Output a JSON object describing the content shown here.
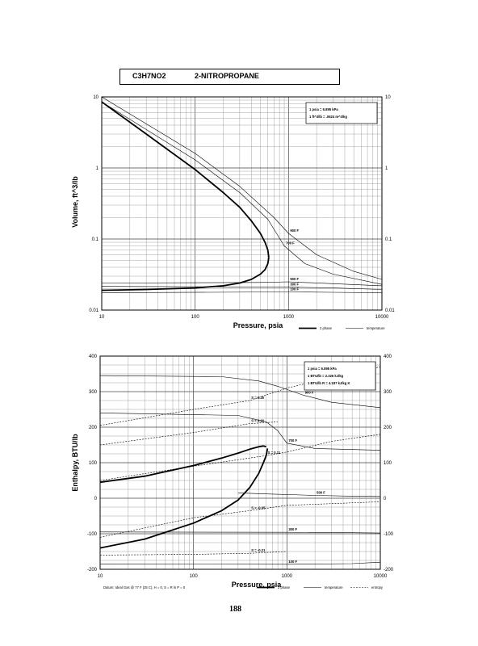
{
  "header": {
    "formula": "C3H7NO2",
    "compound": "2-NITROPROPANE"
  },
  "page_number": "188",
  "chart_data": [
    {
      "type": "line",
      "xscale": "log",
      "yscale": "log",
      "xlabel": "Pressure,  psia",
      "ylabel": "Volume, ft^3/lb",
      "xlim": [
        10,
        10000
      ],
      "ylim": [
        0.01,
        10
      ],
      "x_ticks": [
        "10",
        "100",
        "1000",
        "10000"
      ],
      "y_ticks_left": [
        "10",
        "1",
        "0.1",
        "0.01"
      ],
      "y_ticks_right": [
        "10",
        "1",
        "0.1",
        "0.01"
      ],
      "conversions": [
        "1 psia = 6.895 kPa",
        "1 ft^3/lb = .0624 m^3/kg"
      ],
      "legend": [
        "2 phase",
        "temperature"
      ],
      "two_phase": {
        "name": "2 phase",
        "vapor": [
          [
            10,
            8.5
          ],
          [
            30,
            3.0
          ],
          [
            100,
            0.95
          ],
          [
            200,
            0.45
          ],
          [
            300,
            0.28
          ],
          [
            400,
            0.18
          ],
          [
            500,
            0.12
          ],
          [
            560,
            0.09
          ],
          [
            600,
            0.07
          ],
          [
            615,
            0.055
          ]
        ],
        "liquid": [
          [
            10,
            0.019
          ],
          [
            30,
            0.0195
          ],
          [
            100,
            0.0205
          ],
          [
            200,
            0.022
          ],
          [
            300,
            0.024
          ],
          [
            400,
            0.027
          ],
          [
            500,
            0.032
          ],
          [
            560,
            0.037
          ],
          [
            600,
            0.045
          ],
          [
            615,
            0.055
          ]
        ]
      },
      "isotherms": [
        {
          "label": "900 F",
          "points": [
            [
              10,
              10
            ],
            [
              100,
              1.6
            ],
            [
              300,
              0.55
            ],
            [
              700,
              0.2
            ],
            [
              1000,
              0.12
            ],
            [
              2000,
              0.06
            ],
            [
              5000,
              0.035
            ],
            [
              10000,
              0.027
            ]
          ]
        },
        {
          "label": "700 F",
          "points": [
            [
              10,
              8.5
            ],
            [
              100,
              1.3
            ],
            [
              300,
              0.45
            ],
            [
              600,
              0.19
            ],
            [
              900,
              0.08
            ],
            [
              1500,
              0.045
            ],
            [
              3000,
              0.032
            ],
            [
              10000,
              0.023
            ]
          ]
        },
        {
          "label": "500 F",
          "points": [
            [
              10,
              0.024
            ],
            [
              500,
              0.0245
            ],
            [
              1000,
              0.025
            ],
            [
              3000,
              0.0235
            ],
            [
              10000,
              0.022
            ]
          ]
        },
        {
          "label": "300 F",
          "points": [
            [
              10,
              0.0215
            ],
            [
              1000,
              0.021
            ],
            [
              3000,
              0.0205
            ],
            [
              10000,
              0.0195
            ]
          ]
        },
        {
          "label": "100 F",
          "points": [
            [
              10,
              0.0175
            ],
            [
              1000,
              0.018
            ],
            [
              3000,
              0.0178
            ],
            [
              10000,
              0.0175
            ]
          ]
        }
      ]
    },
    {
      "type": "line",
      "xscale": "log",
      "yscale": "linear",
      "xlabel": "Pressure,  psia",
      "ylabel": "Enthalpy, BTU/lb",
      "xlim": [
        10,
        10000
      ],
      "ylim": [
        -200,
        400
      ],
      "x_ticks": [
        "10",
        "100",
        "1000",
        "10000"
      ],
      "y_ticks_left": [
        "400",
        "300",
        "200",
        "100",
        "0",
        "-100",
        "-200"
      ],
      "y_ticks_right": [
        "400",
        "300",
        "200",
        "100",
        "0",
        "-100",
        "-200"
      ],
      "conversions": [
        "1 psia = 6.895 kPa",
        "1 BTU/lb = 2.326 kJ/kg",
        "1 BTU/lb R = 4.187 kJ/kg K"
      ],
      "legend": [
        "2 phase",
        "temperature",
        "entropy"
      ],
      "datum": "Datum: Ideal Gas @ 77 F (25 C),  H = 0,  S = R ln P = 0",
      "two_phase": {
        "name": "2 phase",
        "vapor": [
          [
            10,
            45
          ],
          [
            30,
            62
          ],
          [
            100,
            92
          ],
          [
            200,
            113
          ],
          [
            300,
            127
          ],
          [
            400,
            138
          ],
          [
            500,
            145
          ],
          [
            560,
            147
          ],
          [
            600,
            145
          ]
        ],
        "liquid": [
          [
            10,
            -140
          ],
          [
            30,
            -115
          ],
          [
            100,
            -70
          ],
          [
            200,
            -35
          ],
          [
            300,
            -5
          ],
          [
            400,
            30
          ],
          [
            500,
            70
          ],
          [
            560,
            100
          ],
          [
            600,
            120
          ],
          [
            620,
            140
          ]
        ]
      },
      "isotherms": [
        {
          "label": "900 F",
          "points": [
            [
              10,
              345
            ],
            [
              200,
              342
            ],
            [
              500,
              330
            ],
            [
              800,
              315
            ],
            [
              1500,
              290
            ],
            [
              3000,
              270
            ],
            [
              10000,
              255
            ]
          ]
        },
        {
          "label": "700 F",
          "points": [
            [
              10,
              240
            ],
            [
              300,
              233
            ],
            [
              600,
              215
            ],
            [
              800,
              190
            ],
            [
              1000,
              155
            ],
            [
              2000,
              140
            ],
            [
              10000,
              135
            ]
          ]
        },
        {
          "label": "500 F",
          "points": [
            [
              300,
              15
            ],
            [
              600,
              12
            ],
            [
              2000,
              8
            ],
            [
              5000,
              6
            ],
            [
              10000,
              5
            ]
          ]
        },
        {
          "label": "300 F",
          "points": [
            [
              10,
              -95
            ],
            [
              1000,
              -96
            ],
            [
              5000,
              -97
            ],
            [
              10000,
              -98
            ]
          ]
        },
        {
          "label": "100 F",
          "points": [
            [
              10,
              -185
            ],
            [
              1000,
              -186
            ],
            [
              5000,
              -184
            ],
            [
              10000,
              -180
            ]
          ]
        }
      ],
      "entropy_lines": [
        {
          "label": "S = 0.25",
          "points": [
            [
              10,
              205
            ],
            [
              100,
              250
            ],
            [
              400,
              275
            ],
            [
              1000,
              310
            ],
            [
              3000,
              340
            ],
            [
              10000,
              370
            ]
          ]
        },
        {
          "label": "S = 0.16",
          "points": [
            [
              10,
              150
            ],
            [
              100,
              185
            ],
            [
              400,
              210
            ],
            [
              800,
              215
            ]
          ]
        },
        {
          "label": "S = 0.11",
          "points": [
            [
              10,
              50
            ],
            [
              100,
              90
            ],
            [
              600,
              120
            ],
            [
              1000,
              130
            ],
            [
              3000,
              160
            ],
            [
              10000,
              180
            ]
          ]
        },
        {
          "label": "S = -0.05",
          "points": [
            [
              10,
              -110
            ],
            [
              100,
              -55
            ],
            [
              400,
              -35
            ],
            [
              1000,
              -20
            ],
            [
              10000,
              -10
            ]
          ]
        },
        {
          "label": "S = -0.21",
          "points": [
            [
              10,
              -160
            ],
            [
              100,
              -158
            ],
            [
              400,
              -155
            ],
            [
              1000,
              -150
            ]
          ]
        }
      ]
    }
  ]
}
